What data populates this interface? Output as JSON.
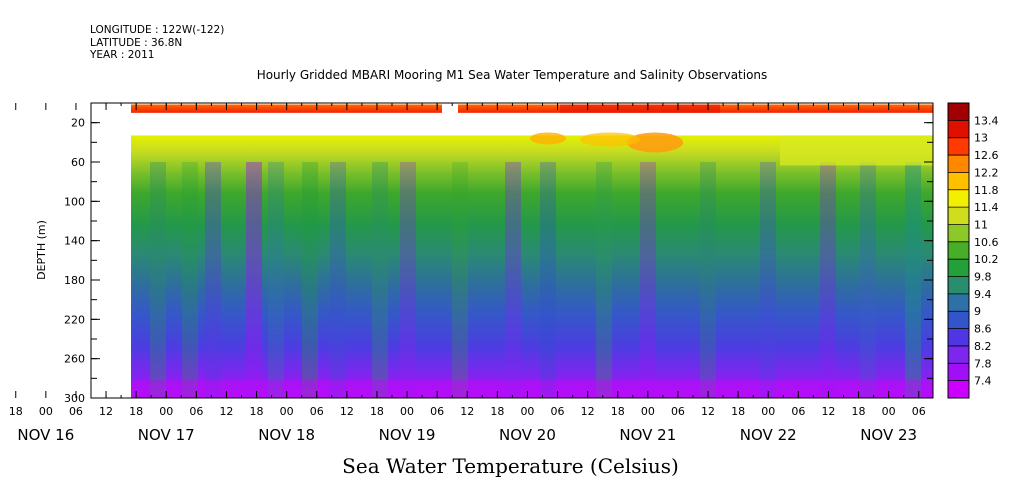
{
  "header": {
    "longitude": "LONGITUDE : 122W(-122)",
    "latitude": "LATITUDE : 36.8N",
    "year": "YEAR : 2011"
  },
  "chart_data": {
    "type": "heatmap",
    "title": "Hourly Gridded MBARI Mooring M1 Sea Water Temperature and Salinity Observations",
    "colorbar_title": "Sea Water Temperature (Celsius)",
    "ylabel": "DEPTH (m)",
    "yaxis": {
      "range": [
        300,
        0
      ],
      "inverted": true,
      "ticks": [
        20,
        60,
        100,
        140,
        180,
        220,
        260,
        300
      ],
      "minor_step": 20
    },
    "xaxis": {
      "hour_ticks": [
        "12",
        "18",
        "00",
        "06",
        "12",
        "18",
        "00",
        "06",
        "12",
        "18",
        "00",
        "06",
        "12",
        "18",
        "00",
        "06",
        "12",
        "18",
        "00",
        "06",
        "12",
        "18",
        "00",
        "06",
        "12",
        "18",
        "00",
        "06",
        "12",
        "18",
        "00",
        "06"
      ],
      "date_labels": [
        "NOV 16",
        "NOV 17",
        "NOV 18",
        "NOV 19",
        "NOV 20",
        "NOV 21",
        "NOV 22",
        "NOV 23"
      ]
    },
    "colorbar": {
      "levels": [
        "7.4",
        "7.8",
        "8.2",
        "8.6",
        "9",
        "9.4",
        "9.8",
        "10.2",
        "10.6",
        "11",
        "11.4",
        "11.8",
        "12.2",
        "12.6",
        "13",
        "13.4"
      ],
      "colors": [
        "#cc00ff",
        "#a10ff6",
        "#7c26ee",
        "#4f36e2",
        "#3355cc",
        "#2e71a8",
        "#2a8e6e",
        "#24a03a",
        "#46ae28",
        "#8cc82a",
        "#cede1e",
        "#f2f000",
        "#ffc000",
        "#ff8800",
        "#ff3a00",
        "#e01000",
        "#a00000"
      ]
    },
    "data_sections": [
      {
        "depth": "surface (~10 m)",
        "temperature_range": [
          12.6,
          13.4
        ],
        "note": "gap near NOV 19 00"
      },
      {
        "depth": "20-35 m",
        "note": "no data"
      },
      {
        "depth": "35 m",
        "temperature_range": [
          11.0,
          12.6
        ]
      },
      {
        "depth": "100 m",
        "temperature_range": [
          9.4,
          10.2
        ]
      },
      {
        "depth": "200 m",
        "temperature_range": [
          8.6,
          9.0
        ]
      },
      {
        "depth": "300 m",
        "temperature_range": [
          7.4,
          8.2
        ]
      }
    ],
    "grid": false
  }
}
